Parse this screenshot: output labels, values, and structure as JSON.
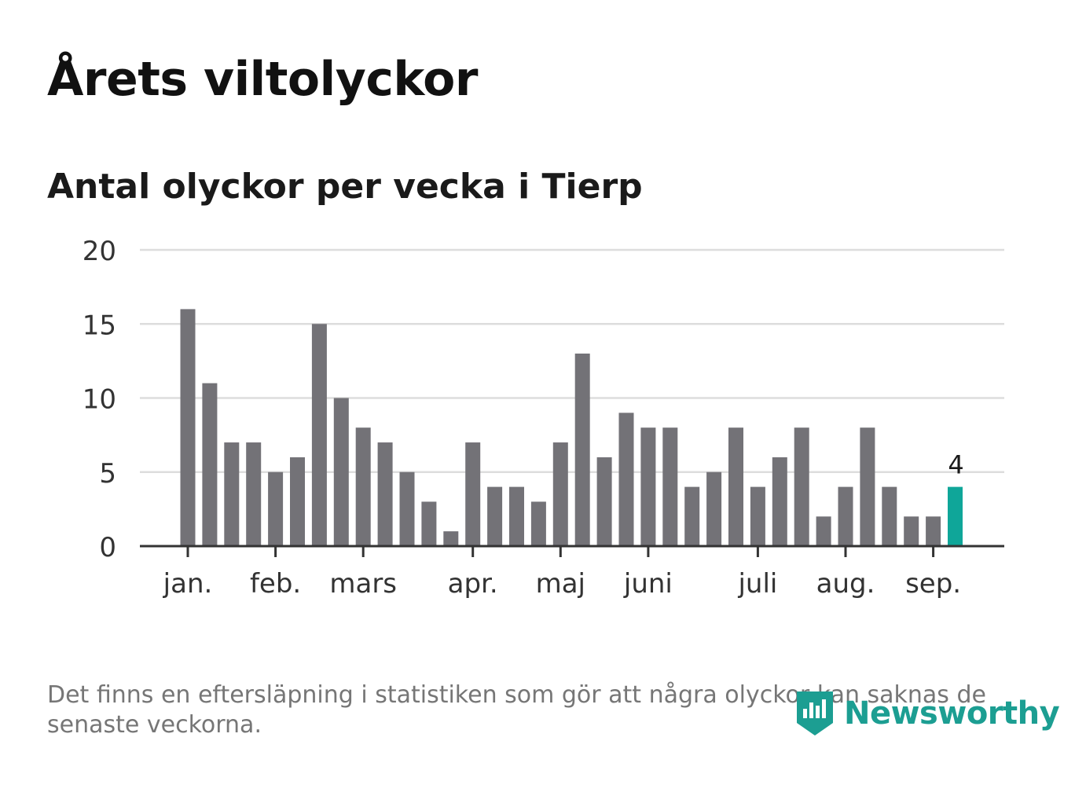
{
  "title": "Årets viltolyckor",
  "subtitle": "Antal olyckor per vecka i Tierp",
  "note": "Det finns en eftersläpning i statistiken som gör att några olyckor kan saknas de senaste veckorna.",
  "brand": {
    "name": "Newsworthy",
    "color": "#1c9e92",
    "icon": "newsworthy-logo-icon"
  },
  "colors": {
    "bar": "#737277",
    "highlight": "#0fa699",
    "grid": "#dddddd",
    "axis": "#333333"
  },
  "chart_data": {
    "type": "bar",
    "title": "",
    "xlabel": "",
    "ylabel": "",
    "ylim": [
      0,
      20
    ],
    "yticks": [
      0,
      5,
      10,
      15,
      20
    ],
    "grid": true,
    "month_labels": [
      {
        "label": "jan.",
        "week_index": 0
      },
      {
        "label": "feb.",
        "week_index": 4
      },
      {
        "label": "mars",
        "week_index": 8
      },
      {
        "label": "apr.",
        "week_index": 13
      },
      {
        "label": "maj",
        "week_index": 17
      },
      {
        "label": "juni",
        "week_index": 21
      },
      {
        "label": "juli",
        "week_index": 26
      },
      {
        "label": "aug.",
        "week_index": 30
      },
      {
        "label": "sep.",
        "week_index": 34
      }
    ],
    "values": [
      16,
      11,
      7,
      7,
      5,
      6,
      15,
      10,
      8,
      7,
      5,
      3,
      1,
      7,
      4,
      4,
      3,
      7,
      13,
      6,
      9,
      8,
      8,
      4,
      5,
      8,
      4,
      6,
      8,
      2,
      4,
      8,
      4,
      2,
      2,
      4
    ],
    "highlight_last": true,
    "last_value_label": "4"
  }
}
